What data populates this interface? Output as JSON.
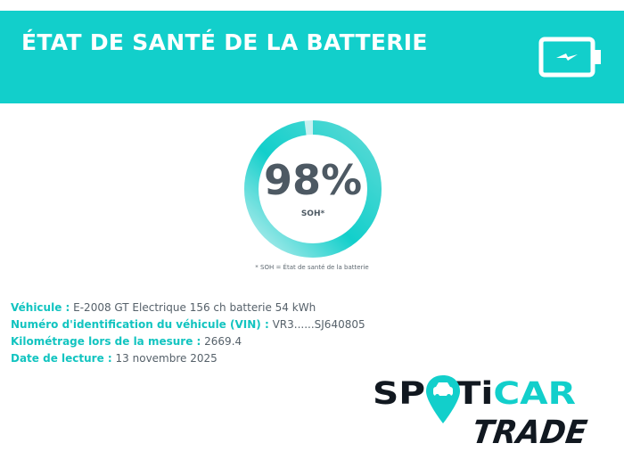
{
  "header": {
    "title": "ÉTAT DE SANTÉ DE LA BATTERIE",
    "icon": "battery-charging-icon",
    "color": "#12cfcb"
  },
  "gauge": {
    "value": "98%",
    "fraction": 0.98,
    "label": "SOH*",
    "track_color": "#b7eeee",
    "fill_color": "#12cfcb"
  },
  "footnote": "* SOH = État de santé de la batterie",
  "info": [
    {
      "key": "Véhicule :",
      "value": "E-2008 GT Electrique 156 ch batterie 54 kWh"
    },
    {
      "key": "Numéro d'identification du véhicule (VIN) :",
      "value": "VR3......SJ640805"
    },
    {
      "key": "Kilométrage lors de la mesure :",
      "value": "2669.4"
    },
    {
      "key": "Date de lecture :",
      "value": "13 novembre 2025"
    }
  ],
  "logo": {
    "line1": "SPOTiCAR",
    "line2": "TRADE",
    "icon": "map-pin-car-icon",
    "dark_color": "#111820",
    "accent_color": "#12cfcb"
  }
}
